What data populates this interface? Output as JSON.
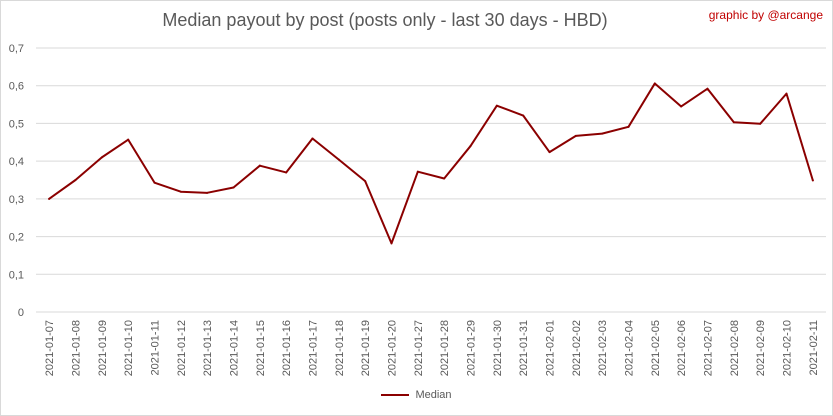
{
  "page": {
    "title": "Median payout by post (posts only - last 30 days - HBD)",
    "watermark": "graphic by @arcange"
  },
  "colors": {
    "series": "#8b0000",
    "grid": "#d9d9d9",
    "text": "#595959",
    "watermark": "#c00000"
  },
  "chart_data": {
    "type": "line",
    "title": "Median payout by post (posts only - last 30 days - HBD)",
    "xlabel": "",
    "ylabel": "",
    "ylim": [
      0,
      0.7
    ],
    "y_ticks": [
      "0",
      "0,1",
      "0,2",
      "0,3",
      "0,4",
      "0,5",
      "0,6",
      "0,7"
    ],
    "grid": true,
    "legend_position": "bottom",
    "categories": [
      "2021-01-07",
      "2021-01-08",
      "2021-01-09",
      "2021-01-10",
      "2021-01-11",
      "2021-01-12",
      "2021-01-13",
      "2021-01-14",
      "2021-01-15",
      "2021-01-16",
      "2021-01-17",
      "2021-01-18",
      "2021-01-19",
      "2021-01-20",
      "2021-01-27",
      "2021-01-28",
      "2021-01-29",
      "2021-01-30",
      "2021-01-31",
      "2021-02-01",
      "2021-02-02",
      "2021-02-03",
      "2021-02-04",
      "2021-02-05",
      "2021-02-06",
      "2021-02-07",
      "2021-02-08",
      "2021-02-09",
      "2021-02-10",
      "2021-02-11"
    ],
    "series": [
      {
        "name": "Median",
        "color": "#8b0000",
        "values": [
          0.3,
          0.35,
          0.41,
          0.457,
          0.343,
          0.319,
          0.316,
          0.33,
          0.388,
          0.37,
          0.46,
          0.404,
          0.347,
          0.182,
          0.372,
          0.354,
          0.44,
          0.547,
          0.521,
          0.424,
          0.467,
          0.473,
          0.491,
          0.606,
          0.545,
          0.592,
          0.503,
          0.499,
          0.579,
          0.349
        ]
      }
    ]
  }
}
